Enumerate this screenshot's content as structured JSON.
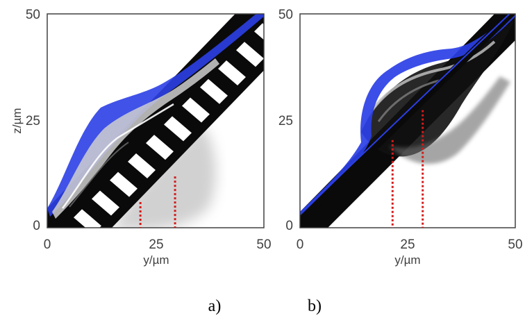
{
  "colors": {
    "surface_layer": "#2b3fe6",
    "bulk_material": "#0a0a0a",
    "marker_line": "#d31b1b",
    "axis": "#404040"
  },
  "captions": [
    "a)",
    "b)"
  ],
  "chart_data": [
    {
      "type": "scatter",
      "panel": "a)",
      "xlabel": "y/µm",
      "ylabel": "z/µm",
      "xlim": [
        0,
        50
      ],
      "ylim": [
        0,
        50
      ],
      "xticks": [
        "0",
        "25",
        "50"
      ],
      "yticks": [
        "0",
        "25",
        "50"
      ],
      "grid": false,
      "substrate": "grooved (striped) incline along z = y",
      "markers": [
        {
          "x": 21.5,
          "z_top": 6.0
        },
        {
          "x": 29.5,
          "z_top": 12.0
        }
      ]
    },
    {
      "type": "scatter",
      "panel": "b)",
      "xlabel": "y/µm",
      "ylabel": "z/µm",
      "xlim": [
        0,
        50
      ],
      "ylim": [
        0,
        50
      ],
      "xticks": [
        "0",
        "25",
        "50"
      ],
      "yticks": [
        "0",
        "25",
        "50"
      ],
      "grid": false,
      "substrate": "smooth incline along z = y",
      "markers": [
        {
          "x": 21.5,
          "z_top": 20.5
        },
        {
          "x": 28.5,
          "z_top": 27.5
        }
      ]
    }
  ]
}
